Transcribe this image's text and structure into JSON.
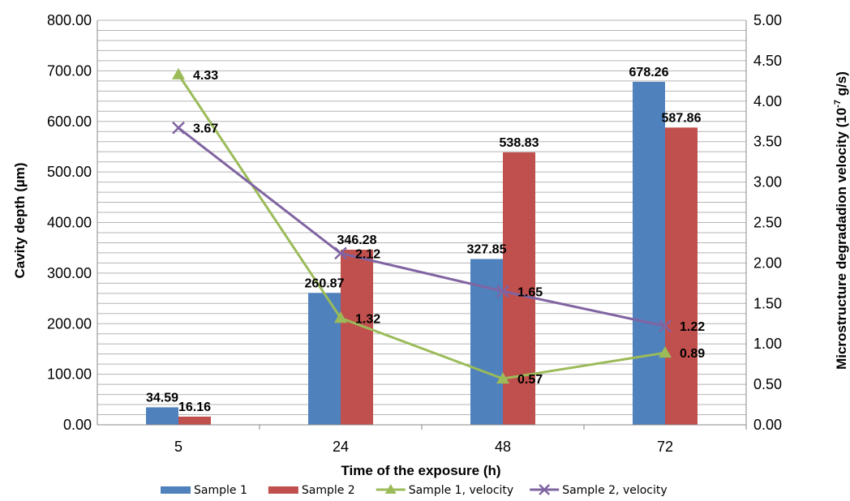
{
  "chart_data": {
    "type": "bar+line",
    "categories": [
      "5",
      "24",
      "48",
      "72"
    ],
    "xlabel": "Time of the exposure (h)",
    "ylabel": "Cavity depth (µm)",
    "y2label_prefix": "Microstructure degradadion velocity (10",
    "y2label_sup": "-7",
    "y2label_suffix": " g/s)",
    "ylim": [
      0,
      800
    ],
    "y2lim": [
      0,
      5
    ],
    "y_ticks": [
      "0.00",
      "100.00",
      "200.00",
      "300.00",
      "400.00",
      "500.00",
      "600.00",
      "700.00",
      "800.00"
    ],
    "y2_ticks": [
      "0.00",
      "0.50",
      "1.00",
      "1.50",
      "2.00",
      "2.50",
      "3.00",
      "3.50",
      "4.00",
      "4.50",
      "5.00"
    ],
    "grid": true,
    "legend_position": "bottom",
    "bar_series": [
      {
        "name": "Sample 1",
        "color": "#4f81bd",
        "values": [
          34.59,
          260.87,
          327.85,
          678.26
        ],
        "labels": [
          "34.59",
          "260.87",
          "327.85",
          "678.26"
        ]
      },
      {
        "name": "Sample 2",
        "color": "#c0504d",
        "values": [
          16.16,
          346.28,
          538.83,
          587.86
        ],
        "labels": [
          "16.16",
          "346.28",
          "538.83",
          "587.86"
        ]
      }
    ],
    "line_series": [
      {
        "name": "Sample 1, velocity",
        "color": "#9bbb59",
        "marker": "triangle",
        "axis": "right",
        "values": [
          4.33,
          1.32,
          0.57,
          0.89
        ],
        "labels": [
          "4.33",
          "1.32",
          "0.57",
          "0.89"
        ]
      },
      {
        "name": "Sample 2, velocity",
        "color": "#8064a2",
        "marker": "x",
        "axis": "right",
        "values": [
          3.67,
          2.12,
          1.65,
          1.22
        ],
        "labels": [
          "3.67",
          "2.12",
          "1.65",
          "1.22"
        ]
      }
    ]
  }
}
